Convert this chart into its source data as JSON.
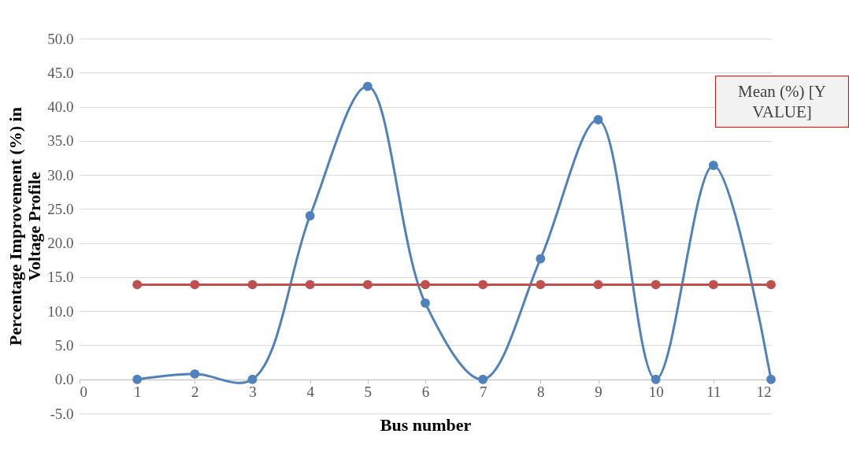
{
  "chart_data": {
    "type": "line",
    "xlabel": "Bus number",
    "ylabel": "Percentage Improvement (%) in Voltage Profile",
    "x": [
      1,
      2,
      3,
      4,
      5,
      6,
      7,
      8,
      9,
      10,
      11,
      12
    ],
    "series": [
      {
        "color": "#4f81bd",
        "values": [
          0,
          0.8,
          0,
          24.0,
          43.0,
          11.2,
          0,
          17.7,
          38.1,
          0,
          31.4,
          0
        ]
      },
      {
        "color": "#c0504d",
        "values": [
          13.9,
          13.9,
          13.9,
          13.9,
          13.9,
          13.9,
          13.9,
          13.9,
          13.9,
          13.9,
          13.9,
          13.9
        ]
      }
    ],
    "xlim": [
      0,
      12
    ],
    "xticks": [
      0,
      1,
      2,
      3,
      4,
      5,
      6,
      7,
      8,
      9,
      10,
      11,
      12
    ],
    "ylim": [
      -5,
      50
    ],
    "yticks": [
      {
        "value": -5,
        "label": "-5.0"
      },
      {
        "value": 0,
        "label": "0.0"
      },
      {
        "value": 5,
        "label": "5.0"
      },
      {
        "value": 10,
        "label": "10.0"
      },
      {
        "value": 15,
        "label": "15.0"
      },
      {
        "value": 20,
        "label": "20.0"
      },
      {
        "value": 25,
        "label": "25.0"
      },
      {
        "value": 30,
        "label": "30.0"
      },
      {
        "value": 35,
        "label": "35.0"
      },
      {
        "value": 40,
        "label": "40.0"
      },
      {
        "value": 45,
        "label": "45.0"
      },
      {
        "value": 50,
        "label": "50.0"
      }
    ],
    "annotations": [
      "Mean (%) [Y VALUE]"
    ],
    "grid": "y",
    "marker": "circle",
    "line_style": "solid"
  }
}
